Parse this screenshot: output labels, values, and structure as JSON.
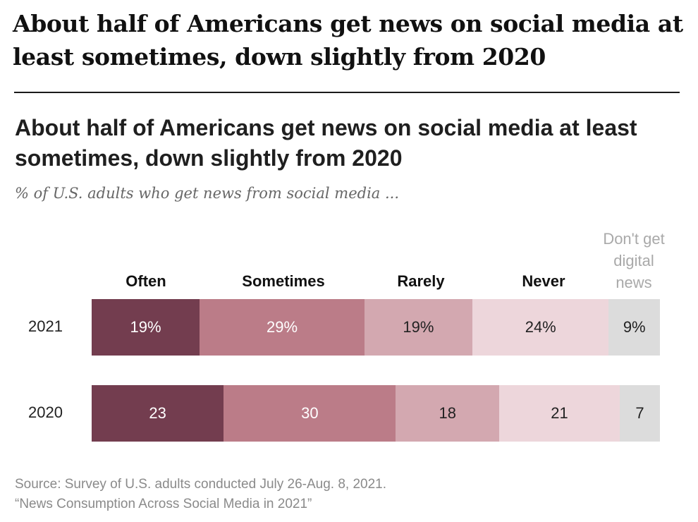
{
  "headline": "About half of Americans get news on social media at least sometimes, down slightly from 2020",
  "colors": {
    "often": "#733d4f",
    "sometimes": "#bb7c88",
    "rarely": "#d3a8b0",
    "never": "#edd6db",
    "no_digital": "#dcdcdc",
    "dark_text": "#ffffff",
    "light_text": "#222222"
  },
  "chart_data": {
    "type": "bar",
    "orientation": "horizontal",
    "stacked": true,
    "title": "About half of Americans get news on social media at least sometimes, down slightly from 2020",
    "subtitle": "% of U.S. adults who get news from social media ...",
    "categories": [
      "2021",
      "2020"
    ],
    "series": [
      {
        "name": "Often",
        "key": "often",
        "values": [
          19,
          23
        ],
        "labels": [
          "19%",
          "23"
        ]
      },
      {
        "name": "Sometimes",
        "key": "sometimes",
        "values": [
          29,
          30
        ],
        "labels": [
          "29%",
          "30"
        ]
      },
      {
        "name": "Rarely",
        "key": "rarely",
        "values": [
          19,
          18
        ],
        "labels": [
          "19%",
          "18"
        ]
      },
      {
        "name": "Never",
        "key": "never",
        "values": [
          24,
          21
        ],
        "labels": [
          "24%",
          "21"
        ]
      },
      {
        "name": "Don't get digital news",
        "key": "no_digital",
        "values": [
          9,
          7
        ],
        "labels": [
          "9%",
          "7"
        ]
      }
    ],
    "xlim": [
      0,
      99
    ],
    "legend": "column headers above bars",
    "source_lines": [
      "Source: Survey of U.S. adults conducted July 26-Aug. 8, 2021.",
      "“News Consumption Across Social Media in 2021”"
    ]
  }
}
